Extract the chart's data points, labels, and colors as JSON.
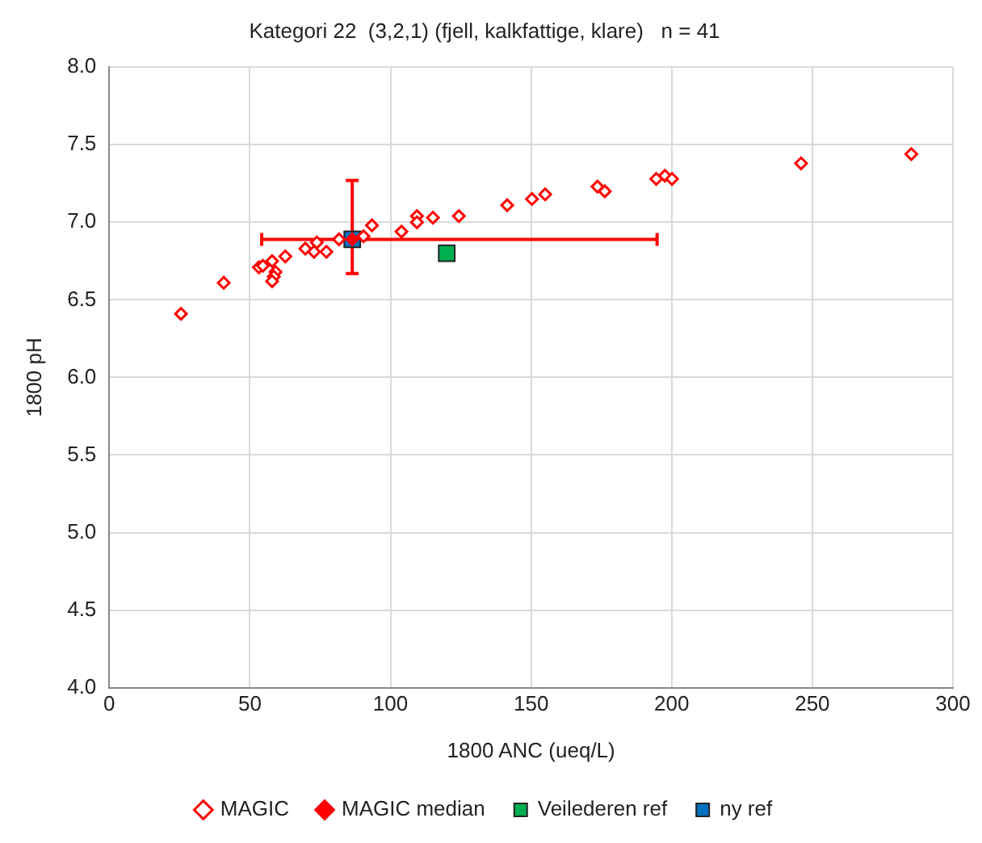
{
  "chart_data": {
    "type": "scatter",
    "title": "Kategori 22  (3,2,1) (fjell, kalkfattige, klare)   n = 41",
    "xlabel": "1800 ANC (ueq/L)",
    "ylabel": "1800 pH",
    "xlim": [
      0,
      300
    ],
    "xticks": [
      0,
      50,
      100,
      150,
      200,
      250,
      300
    ],
    "ylim": [
      4.0,
      8.0
    ],
    "yticks": [
      {
        "value": 4,
        "label": "4.0"
      },
      {
        "value": 4.5,
        "label": "4.5"
      },
      {
        "value": 5,
        "label": "5.0"
      },
      {
        "value": 5.5,
        "label": "5.5"
      },
      {
        "value": 6,
        "label": "6.0"
      },
      {
        "value": 6.5,
        "label": "6.5"
      },
      {
        "value": 7,
        "label": "7.0"
      },
      {
        "value": 7.5,
        "label": "7.5"
      },
      {
        "value": 8,
        "label": "8.0"
      }
    ],
    "grid": true,
    "legend": "bottom",
    "series": [
      {
        "name": "MAGIC",
        "color": "#ff0000",
        "marker": "diamond",
        "x": [
          25.5,
          40.7,
          53.2,
          54.6,
          57.9,
          62.6,
          59.1,
          58.5,
          57.9,
          69.7,
          72.8,
          73.8,
          77.2,
          81.7,
          90.4,
          93.4,
          103.9,
          109.4,
          109.4,
          115.1,
          124.3,
          141.5,
          150.3,
          155,
          173.6,
          176.2,
          194.5,
          197.6,
          200.1,
          246,
          285.2
        ],
        "values": [
          6.41,
          6.61,
          6.71,
          6.72,
          6.75,
          6.78,
          6.68,
          6.65,
          6.62,
          6.83,
          6.81,
          6.87,
          6.81,
          6.89,
          6.91,
          6.98,
          6.94,
          7.04,
          7.0,
          7.03,
          7.04,
          7.11,
          7.15,
          7.18,
          7.23,
          7.2,
          7.28,
          7.3,
          7.28,
          7.38,
          7.44
        ]
      },
      {
        "name": "MAGIC median",
        "color": "#ff0000",
        "marker": "diamond",
        "x": [
          86.4
        ],
        "values": [
          6.89
        ],
        "errors": [
          [
            6.67,
            7.27
          ]
        ],
        "xerrors": [
          [
            54.2,
            194.8
          ]
        ]
      },
      {
        "name": "Veilederen ref",
        "color": "#00b050",
        "marker": "square",
        "x": [
          120
        ],
        "values": [
          6.8
        ]
      },
      {
        "name": "ny ref",
        "color": "#0070c0",
        "marker": "square",
        "x": [
          86.4
        ],
        "values": [
          6.89
        ]
      }
    ]
  }
}
